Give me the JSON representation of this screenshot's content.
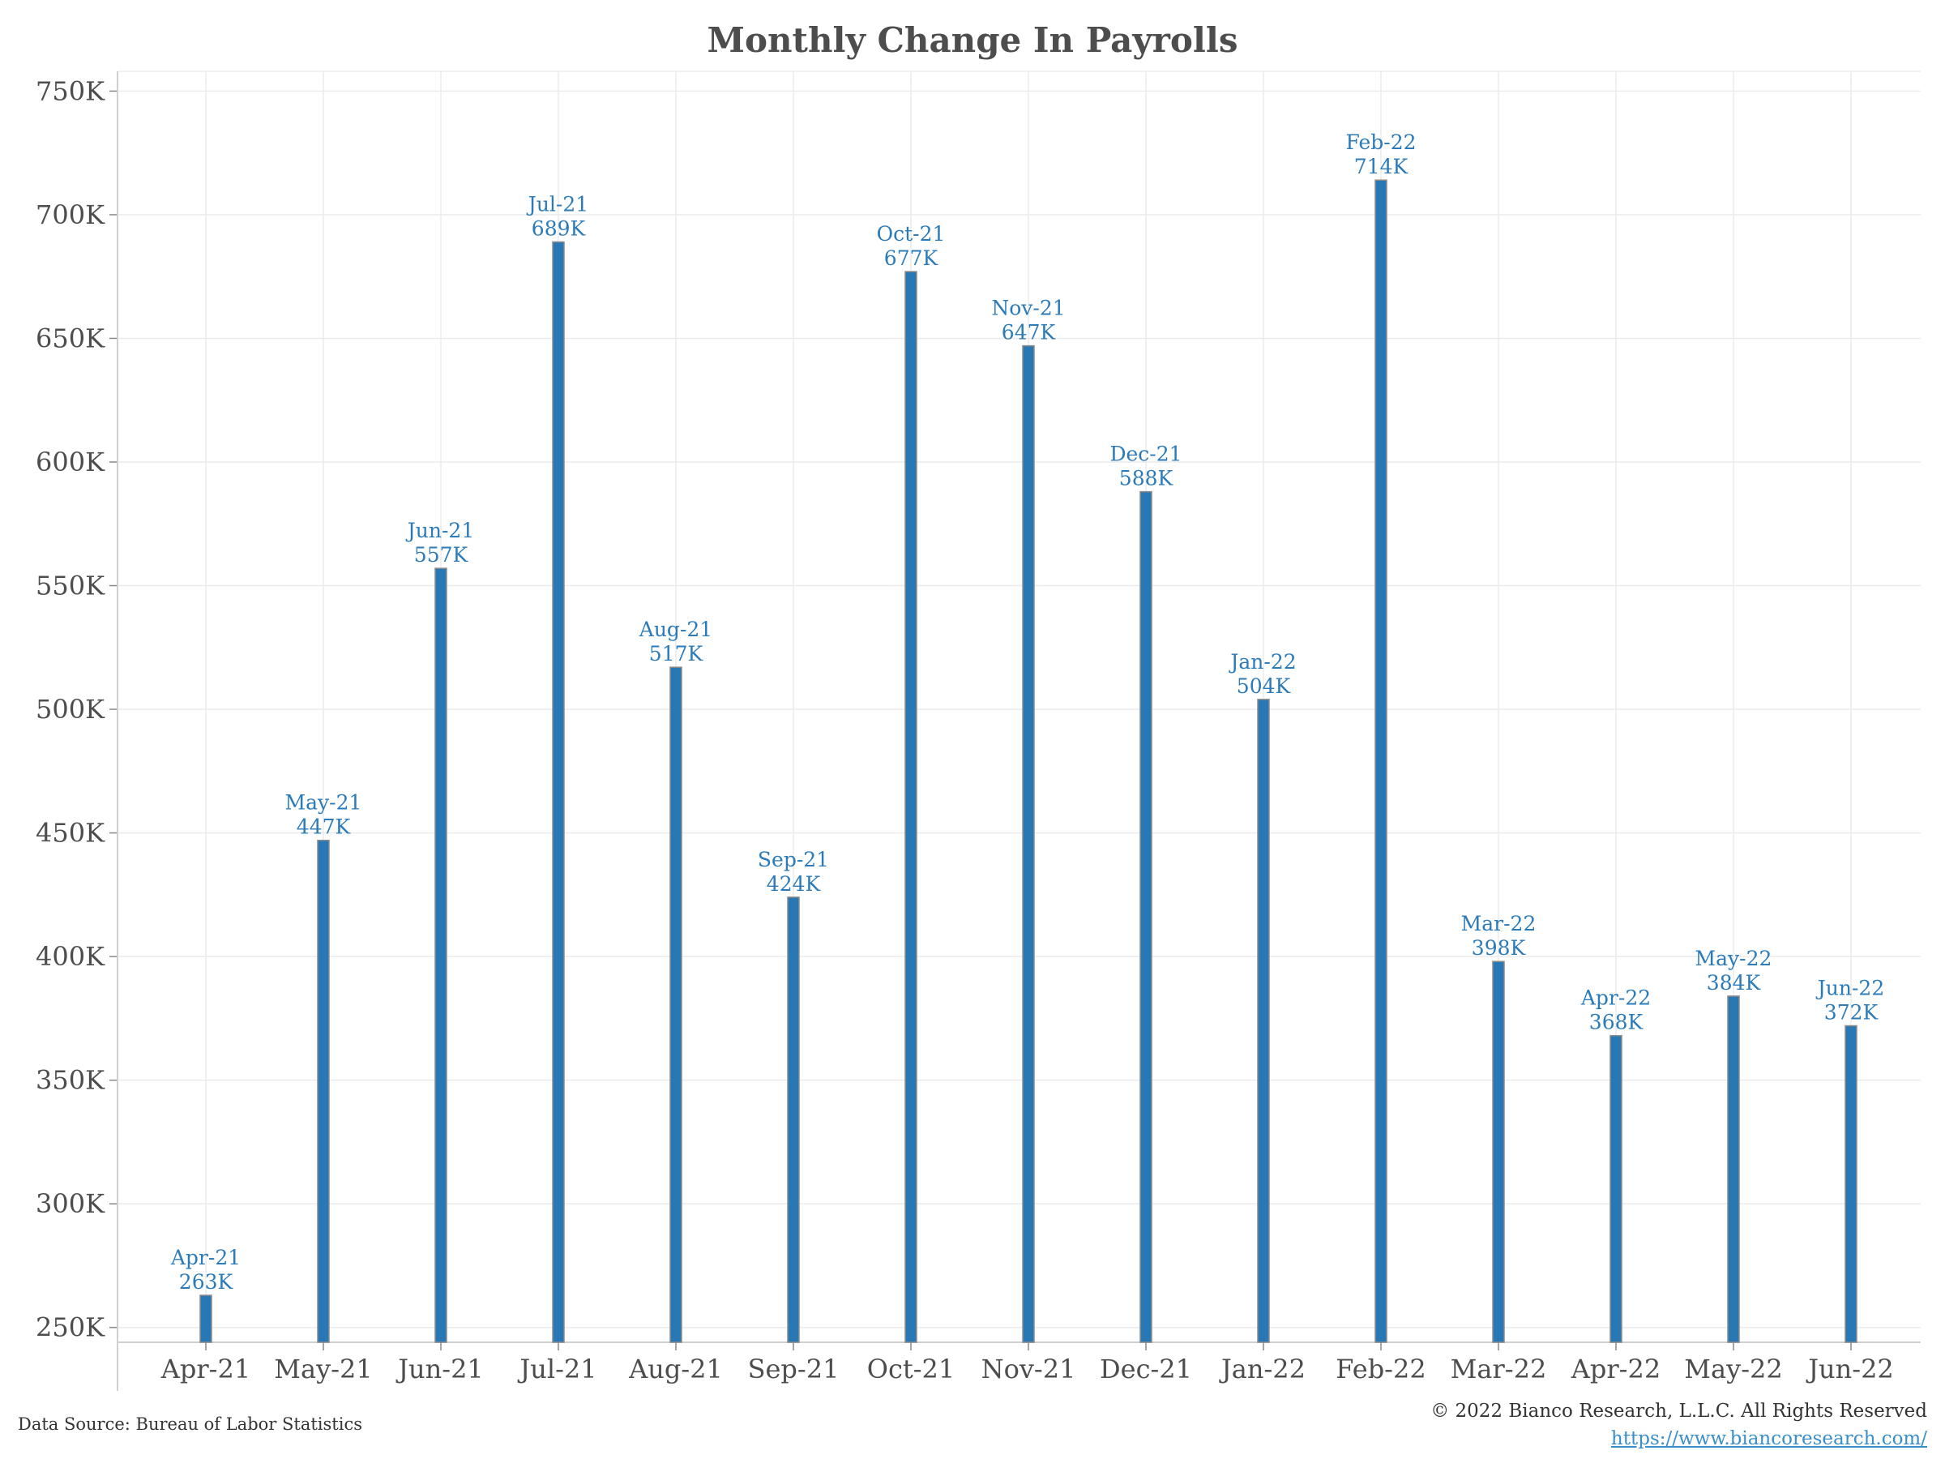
{
  "chart_data": {
    "type": "bar",
    "title": "Monthly Change In Payrolls",
    "xlabel": "",
    "ylabel": "",
    "categories": [
      "Apr-21",
      "May-21",
      "Jun-21",
      "Jul-21",
      "Aug-21",
      "Sep-21",
      "Oct-21",
      "Nov-21",
      "Dec-21",
      "Jan-22",
      "Feb-22",
      "Mar-22",
      "Apr-22",
      "May-22",
      "Jun-22"
    ],
    "values": [
      263,
      447,
      557,
      689,
      517,
      424,
      677,
      647,
      588,
      504,
      714,
      398,
      368,
      384,
      372
    ],
    "value_labels": [
      "263K",
      "447K",
      "557K",
      "689K",
      "517K",
      "424K",
      "677K",
      "647K",
      "588K",
      "504K",
      "714K",
      "398K",
      "368K",
      "384K",
      "372K"
    ],
    "ylim": [
      244,
      758
    ],
    "yticks": [
      250,
      300,
      350,
      400,
      450,
      500,
      550,
      600,
      650,
      700,
      750
    ],
    "ytick_labels": [
      "250K",
      "300K",
      "350K",
      "400K",
      "450K",
      "500K",
      "550K",
      "600K",
      "650K",
      "700K",
      "750K"
    ],
    "grid": true,
    "legend": "none",
    "colors": {
      "bar": "#2878b5",
      "bar_edge": "#8a8a8a",
      "label": "#2b7bba",
      "grid": "#ebebeb",
      "axis": "#cfcfcf"
    }
  },
  "footer": {
    "source": "Data Source: Bureau of Labor Statistics",
    "copyright": "© 2022 Bianco Research, L.L.C. All Rights Reserved",
    "url": "https://www.biancoresearch.com/"
  }
}
